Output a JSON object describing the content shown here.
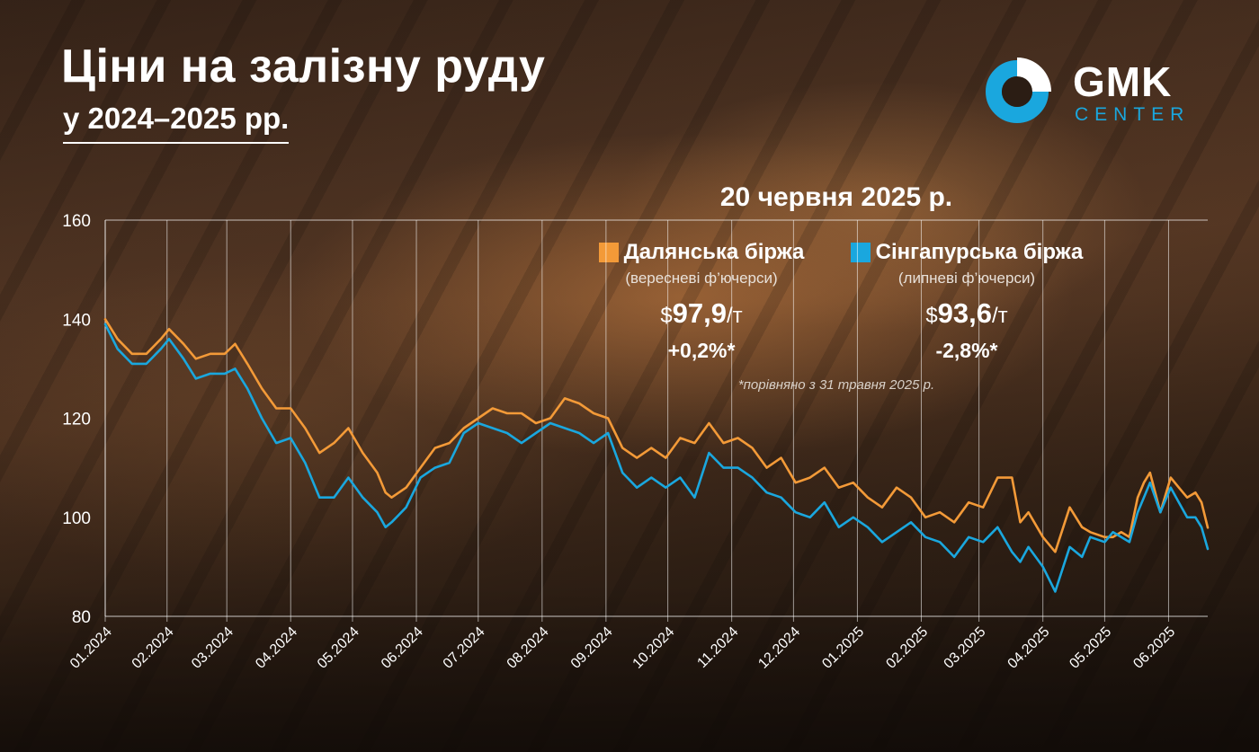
{
  "header": {
    "title": "Ціни на залізну руду",
    "subtitle": "у 2024–2025 рр."
  },
  "logo": {
    "name": "GMK",
    "sub": "CENTER",
    "color": "#1aa7de"
  },
  "snapshot": {
    "date": "20 червня 2025 р.",
    "footnote": "*порівняно з 31 травня 2025 р.",
    "dalian": {
      "name": "Далянська біржа",
      "contract": "(вересневі ф’ючерси)",
      "currency": "$",
      "price": "97,9",
      "unit": "/т",
      "change": "+0,2%*"
    },
    "singapore": {
      "name": "Сінгапурська біржа",
      "contract": "(липневі ф’ючерси)",
      "currency": "$",
      "price": "93,6",
      "unit": "/т",
      "change": "-2,8%*"
    }
  },
  "chart_data": {
    "type": "line",
    "x_ticks": [
      "01.2024",
      "02.2024",
      "03.2024",
      "04.2024",
      "05.2024",
      "06.2024",
      "07.2024",
      "08.2024",
      "09.2024",
      "10.2024",
      "11.2024",
      "12.2024",
      "01.2025",
      "02.2025",
      "03.2025",
      "04.2025",
      "05.2025",
      "06.2025"
    ],
    "y_ticks": [
      "80",
      "100",
      "120",
      "140",
      "160"
    ],
    "ylim": [
      80,
      160
    ],
    "x_start": "2024-01-02",
    "x_end": "2025-06-20",
    "grid": "vertical lines at month ticks, horizontal line at 160",
    "series": [
      {
        "name": "Далянська біржа",
        "color": "#f39a38",
        "points": [
          [
            "2024-01-02",
            140
          ],
          [
            "2024-01-08",
            136
          ],
          [
            "2024-01-15",
            133
          ],
          [
            "2024-01-22",
            133
          ],
          [
            "2024-01-29",
            136
          ],
          [
            "2024-02-02",
            138
          ],
          [
            "2024-02-09",
            135
          ],
          [
            "2024-02-15",
            132
          ],
          [
            "2024-02-22",
            133
          ],
          [
            "2024-02-29",
            133
          ],
          [
            "2024-03-05",
            135
          ],
          [
            "2024-03-11",
            131
          ],
          [
            "2024-03-18",
            126
          ],
          [
            "2024-03-25",
            122
          ],
          [
            "2024-04-01",
            122
          ],
          [
            "2024-04-08",
            118
          ],
          [
            "2024-04-15",
            113
          ],
          [
            "2024-04-22",
            115
          ],
          [
            "2024-04-29",
            118
          ],
          [
            "2024-05-06",
            113
          ],
          [
            "2024-05-13",
            109
          ],
          [
            "2024-05-17",
            105
          ],
          [
            "2024-05-20",
            104
          ],
          [
            "2024-05-27",
            106
          ],
          [
            "2024-06-03",
            110
          ],
          [
            "2024-06-10",
            114
          ],
          [
            "2024-06-17",
            115
          ],
          [
            "2024-06-24",
            118
          ],
          [
            "2024-07-01",
            120
          ],
          [
            "2024-07-08",
            122
          ],
          [
            "2024-07-15",
            121
          ],
          [
            "2024-07-22",
            121
          ],
          [
            "2024-07-29",
            119
          ],
          [
            "2024-08-05",
            120
          ],
          [
            "2024-08-12",
            124
          ],
          [
            "2024-08-19",
            123
          ],
          [
            "2024-08-26",
            121
          ],
          [
            "2024-09-02",
            120
          ],
          [
            "2024-09-09",
            114
          ],
          [
            "2024-09-16",
            112
          ],
          [
            "2024-09-23",
            114
          ],
          [
            "2024-09-30",
            112
          ],
          [
            "2024-10-07",
            116
          ],
          [
            "2024-10-14",
            115
          ],
          [
            "2024-10-21",
            119
          ],
          [
            "2024-10-28",
            115
          ],
          [
            "2024-11-04",
            116
          ],
          [
            "2024-11-11",
            114
          ],
          [
            "2024-11-18",
            110
          ],
          [
            "2024-11-25",
            112
          ],
          [
            "2024-12-02",
            107
          ],
          [
            "2024-12-09",
            108
          ],
          [
            "2024-12-16",
            110
          ],
          [
            "2024-12-23",
            106
          ],
          [
            "2024-12-30",
            107
          ],
          [
            "2025-01-06",
            104
          ],
          [
            "2025-01-13",
            102
          ],
          [
            "2025-01-20",
            106
          ],
          [
            "2025-01-27",
            104
          ],
          [
            "2025-02-03",
            100
          ],
          [
            "2025-02-10",
            101
          ],
          [
            "2025-02-17",
            99
          ],
          [
            "2025-02-24",
            103
          ],
          [
            "2025-03-03",
            102
          ],
          [
            "2025-03-10",
            108
          ],
          [
            "2025-03-17",
            108
          ],
          [
            "2025-03-21",
            99
          ],
          [
            "2025-03-25",
            101
          ],
          [
            "2025-04-01",
            96
          ],
          [
            "2025-04-07",
            93
          ],
          [
            "2025-04-14",
            102
          ],
          [
            "2025-04-20",
            98
          ],
          [
            "2025-04-24",
            97
          ],
          [
            "2025-05-01",
            96
          ],
          [
            "2025-05-05",
            96
          ],
          [
            "2025-05-09",
            97
          ],
          [
            "2025-05-13",
            96
          ],
          [
            "2025-05-17",
            104
          ],
          [
            "2025-05-20",
            107
          ],
          [
            "2025-05-23",
            109
          ],
          [
            "2025-05-28",
            101
          ],
          [
            "2025-06-02",
            108
          ],
          [
            "2025-06-06",
            106
          ],
          [
            "2025-06-10",
            104
          ],
          [
            "2025-06-14",
            105
          ],
          [
            "2025-06-17",
            103
          ],
          [
            "2025-06-20",
            97.9
          ]
        ]
      },
      {
        "name": "Сінгапурська біржа",
        "color": "#1aa7de",
        "points": [
          [
            "2024-01-02",
            139
          ],
          [
            "2024-01-08",
            134
          ],
          [
            "2024-01-15",
            131
          ],
          [
            "2024-01-22",
            131
          ],
          [
            "2024-01-29",
            134
          ],
          [
            "2024-02-02",
            136
          ],
          [
            "2024-02-09",
            132
          ],
          [
            "2024-02-15",
            128
          ],
          [
            "2024-02-22",
            129
          ],
          [
            "2024-02-29",
            129
          ],
          [
            "2024-03-05",
            130
          ],
          [
            "2024-03-11",
            126
          ],
          [
            "2024-03-18",
            120
          ],
          [
            "2024-03-25",
            115
          ],
          [
            "2024-04-01",
            116
          ],
          [
            "2024-04-08",
            111
          ],
          [
            "2024-04-15",
            104
          ],
          [
            "2024-04-22",
            104
          ],
          [
            "2024-04-29",
            108
          ],
          [
            "2024-05-06",
            104
          ],
          [
            "2024-05-13",
            101
          ],
          [
            "2024-05-17",
            98
          ],
          [
            "2024-05-20",
            99
          ],
          [
            "2024-05-27",
            102
          ],
          [
            "2024-06-03",
            108
          ],
          [
            "2024-06-10",
            110
          ],
          [
            "2024-06-17",
            111
          ],
          [
            "2024-06-24",
            117
          ],
          [
            "2024-07-01",
            119
          ],
          [
            "2024-07-08",
            118
          ],
          [
            "2024-07-15",
            117
          ],
          [
            "2024-07-22",
            115
          ],
          [
            "2024-07-29",
            117
          ],
          [
            "2024-08-05",
            119
          ],
          [
            "2024-08-12",
            118
          ],
          [
            "2024-08-19",
            117
          ],
          [
            "2024-08-26",
            115
          ],
          [
            "2024-09-02",
            117
          ],
          [
            "2024-09-09",
            109
          ],
          [
            "2024-09-16",
            106
          ],
          [
            "2024-09-23",
            108
          ],
          [
            "2024-09-30",
            106
          ],
          [
            "2024-10-07",
            108
          ],
          [
            "2024-10-14",
            104
          ],
          [
            "2024-10-21",
            113
          ],
          [
            "2024-10-28",
            110
          ],
          [
            "2024-11-04",
            110
          ],
          [
            "2024-11-11",
            108
          ],
          [
            "2024-11-18",
            105
          ],
          [
            "2024-11-25",
            104
          ],
          [
            "2024-12-02",
            101
          ],
          [
            "2024-12-09",
            100
          ],
          [
            "2024-12-16",
            103
          ],
          [
            "2024-12-23",
            98
          ],
          [
            "2024-12-30",
            100
          ],
          [
            "2025-01-06",
            98
          ],
          [
            "2025-01-13",
            95
          ],
          [
            "2025-01-20",
            97
          ],
          [
            "2025-01-27",
            99
          ],
          [
            "2025-02-03",
            96
          ],
          [
            "2025-02-10",
            95
          ],
          [
            "2025-02-17",
            92
          ],
          [
            "2025-02-24",
            96
          ],
          [
            "2025-03-03",
            95
          ],
          [
            "2025-03-10",
            98
          ],
          [
            "2025-03-17",
            93
          ],
          [
            "2025-03-21",
            91
          ],
          [
            "2025-03-25",
            94
          ],
          [
            "2025-04-01",
            90
          ],
          [
            "2025-04-07",
            85
          ],
          [
            "2025-04-14",
            94
          ],
          [
            "2025-04-20",
            92
          ],
          [
            "2025-04-24",
            96
          ],
          [
            "2025-05-01",
            95
          ],
          [
            "2025-05-05",
            97
          ],
          [
            "2025-05-09",
            96
          ],
          [
            "2025-05-13",
            95
          ],
          [
            "2025-05-17",
            101
          ],
          [
            "2025-05-20",
            104
          ],
          [
            "2025-05-23",
            107
          ],
          [
            "2025-05-28",
            101
          ],
          [
            "2025-06-02",
            106
          ],
          [
            "2025-06-06",
            103
          ],
          [
            "2025-06-10",
            100
          ],
          [
            "2025-06-14",
            100
          ],
          [
            "2025-06-17",
            98
          ],
          [
            "2025-06-20",
            93.6
          ]
        ]
      }
    ]
  }
}
